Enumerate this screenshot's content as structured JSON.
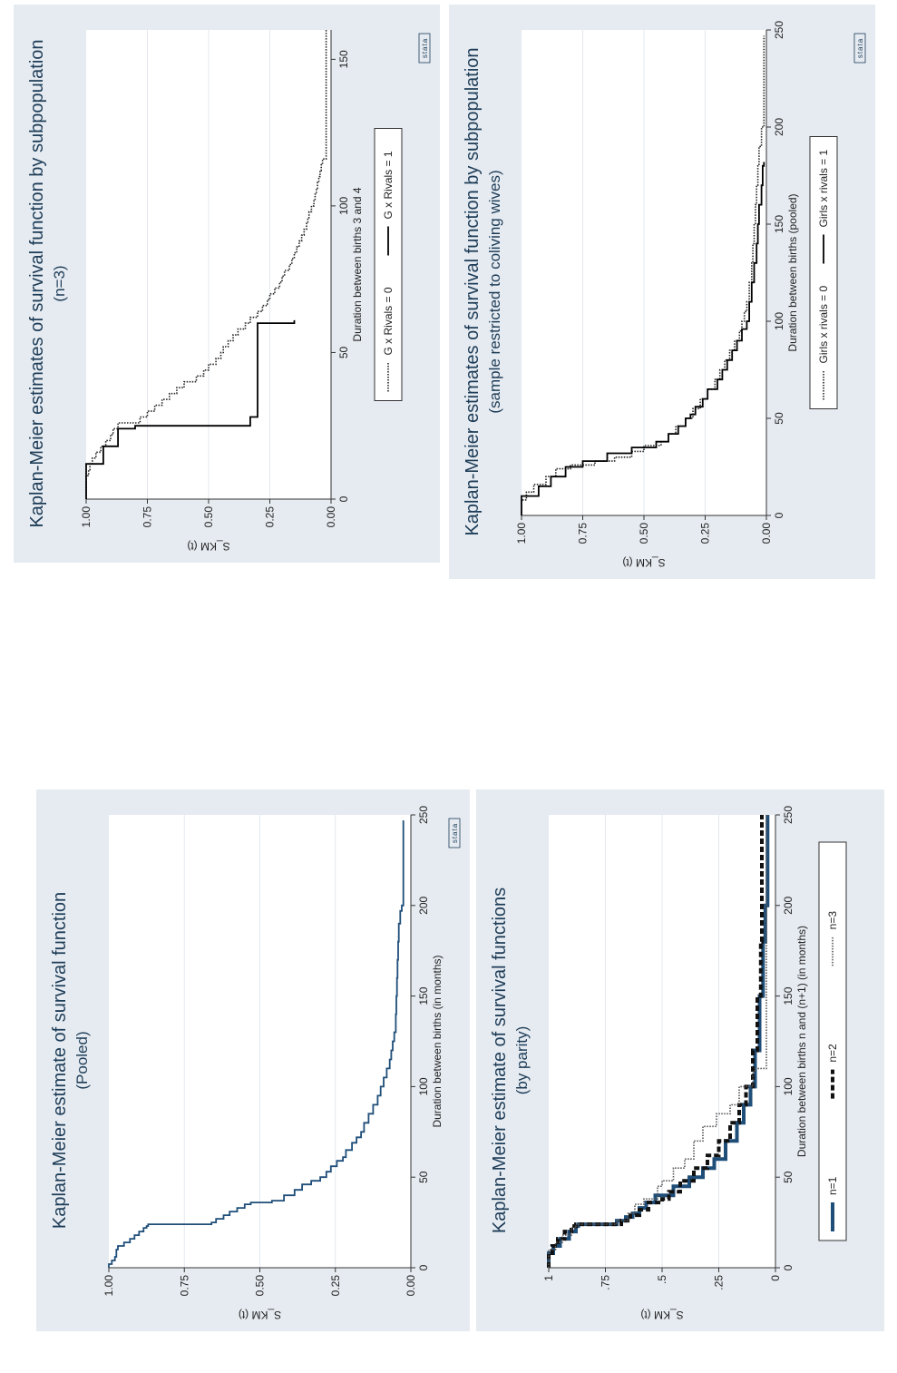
{
  "charts": [
    {
      "id": "pooled",
      "type": "line",
      "title": "Kaplan-Meier estimate of survival function",
      "subtitle": "(Pooled)",
      "xlabel": "Duration between births (in months)",
      "ylabel": "S_KM (t)",
      "xlim": [
        0,
        250
      ],
      "ylim": [
        0,
        1
      ],
      "xticks": [
        "0",
        "50",
        "100",
        "150",
        "200",
        "250"
      ],
      "yticks": [
        "0.00",
        "0.25",
        "0.50",
        "0.75",
        "1.00"
      ],
      "grid": true,
      "legend": null,
      "watermark": "stata",
      "series": [
        {
          "name": "",
          "color": "#1f4e79",
          "style": "solid",
          "x": [
            0,
            2,
            4,
            6,
            10,
            12,
            14,
            16,
            18,
            20,
            22,
            23,
            24,
            25,
            27,
            29,
            31,
            33,
            35,
            36,
            37,
            40,
            43,
            46,
            48,
            50,
            53,
            56,
            59,
            61,
            65,
            69,
            72,
            75,
            80,
            85,
            90,
            95,
            100,
            105,
            110,
            115,
            120,
            125,
            130,
            140,
            150,
            160,
            170,
            180,
            190,
            197,
            200,
            247
          ],
          "y": [
            1.0,
            0.99,
            0.98,
            0.975,
            0.97,
            0.95,
            0.93,
            0.915,
            0.9,
            0.885,
            0.875,
            0.87,
            0.66,
            0.645,
            0.62,
            0.6,
            0.575,
            0.55,
            0.53,
            0.46,
            0.42,
            0.385,
            0.36,
            0.33,
            0.3,
            0.28,
            0.265,
            0.245,
            0.225,
            0.215,
            0.195,
            0.18,
            0.165,
            0.155,
            0.14,
            0.125,
            0.11,
            0.1,
            0.09,
            0.08,
            0.07,
            0.065,
            0.06,
            0.055,
            0.05,
            0.048,
            0.046,
            0.044,
            0.042,
            0.04,
            0.035,
            0.03,
            0.025,
            0.025
          ]
        }
      ]
    },
    {
      "id": "parity",
      "type": "line",
      "title": "Kaplan-Meier estimate of survival functions",
      "subtitle": "(by parity)",
      "xlabel": "Duration between births n and (n+1) (in months)",
      "ylabel": "S_KM (t)",
      "xlim": [
        0,
        250
      ],
      "ylim": [
        0,
        1
      ],
      "xticks": [
        "0",
        "50",
        "100",
        "150",
        "200",
        "250"
      ],
      "yticks": [
        "0",
        ".25",
        ".5",
        ".75",
        "1"
      ],
      "grid": true,
      "legend": {
        "position": "bottom",
        "entries": [
          "n=1",
          "n=2",
          "n=3"
        ]
      },
      "watermark": "",
      "series": [
        {
          "name": "n=1",
          "color": "#1f4e79",
          "style": "thick",
          "x": [
            0,
            8,
            12,
            16,
            20,
            23,
            24,
            26,
            28,
            30,
            33,
            36,
            40,
            45,
            50,
            55,
            60,
            70,
            80,
            90,
            100,
            120,
            150,
            180,
            200,
            250
          ],
          "y": [
            1.0,
            0.98,
            0.95,
            0.91,
            0.88,
            0.87,
            0.7,
            0.66,
            0.63,
            0.6,
            0.57,
            0.53,
            0.45,
            0.38,
            0.32,
            0.27,
            0.22,
            0.17,
            0.14,
            0.11,
            0.09,
            0.07,
            0.055,
            0.045,
            0.035,
            0.035
          ]
        },
        {
          "name": "n=2",
          "color": "#111111",
          "style": "dash",
          "x": [
            0,
            8,
            12,
            16,
            20,
            23,
            24,
            26,
            29,
            32,
            36,
            38,
            42,
            48,
            55,
            62,
            70,
            80,
            90,
            100,
            120,
            150,
            180,
            200,
            250
          ],
          "y": [
            1.0,
            0.985,
            0.96,
            0.93,
            0.9,
            0.88,
            0.68,
            0.64,
            0.6,
            0.56,
            0.5,
            0.47,
            0.42,
            0.36,
            0.3,
            0.25,
            0.2,
            0.16,
            0.13,
            0.1,
            0.08,
            0.065,
            0.06,
            0.06,
            0.06
          ]
        },
        {
          "name": "n=3",
          "color": "#555555",
          "style": "dot",
          "x": [
            0,
            10,
            14,
            18,
            22,
            24,
            26,
            30,
            35,
            38,
            45,
            48,
            55,
            60,
            70,
            78,
            85,
            90,
            100,
            108,
            110,
            130,
            150,
            200,
            250
          ],
          "y": [
            1.0,
            0.97,
            0.94,
            0.9,
            0.88,
            0.7,
            0.65,
            0.62,
            0.58,
            0.52,
            0.5,
            0.45,
            0.4,
            0.36,
            0.32,
            0.26,
            0.2,
            0.16,
            0.1,
            0.09,
            0.04,
            0.04,
            0.04,
            0.04,
            0.04
          ]
        }
      ]
    },
    {
      "id": "rivals",
      "type": "line",
      "title": "Kaplan-Meier estimates of survival function by subpopulation",
      "subtitle": "(n=3)",
      "xlabel": "Duration between births 3 and 4",
      "ylabel": "S_KM (t)",
      "xlim": [
        0,
        160
      ],
      "ylim": [
        0,
        1
      ],
      "xticks": [
        "0",
        "50",
        "100",
        "150"
      ],
      "yticks": [
        "0.00",
        "0.25",
        "0.50",
        "0.75",
        "1.00"
      ],
      "grid": true,
      "legend": {
        "position": "bottom",
        "entries": [
          "G x Rivals = 0",
          "G x Rivals = 1"
        ]
      },
      "watermark": "stata",
      "series": [
        {
          "name": "G x Rivals = 0",
          "color": "#222222",
          "style": "dot",
          "x": [
            0,
            8,
            10,
            12,
            14,
            16,
            18,
            20,
            22,
            24,
            26,
            28,
            30,
            32,
            34,
            36,
            38,
            40,
            42,
            44,
            46,
            48,
            50,
            52,
            54,
            56,
            58,
            60,
            62,
            64,
            66,
            68,
            70,
            72,
            74,
            76,
            78,
            80,
            82,
            84,
            86,
            88,
            90,
            92,
            94,
            96,
            98,
            100,
            102,
            104,
            106,
            108,
            110,
            112,
            114,
            116,
            160
          ],
          "y": [
            1.0,
            0.99,
            0.985,
            0.975,
            0.96,
            0.94,
            0.92,
            0.9,
            0.89,
            0.87,
            0.78,
            0.75,
            0.72,
            0.69,
            0.66,
            0.63,
            0.6,
            0.55,
            0.52,
            0.5,
            0.47,
            0.45,
            0.44,
            0.42,
            0.4,
            0.38,
            0.35,
            0.33,
            0.3,
            0.28,
            0.26,
            0.25,
            0.23,
            0.21,
            0.2,
            0.19,
            0.17,
            0.16,
            0.15,
            0.14,
            0.13,
            0.12,
            0.11,
            0.1,
            0.095,
            0.09,
            0.08,
            0.07,
            0.065,
            0.06,
            0.055,
            0.05,
            0.045,
            0.04,
            0.035,
            0.02,
            0.02
          ]
        },
        {
          "name": "G x Rivals = 1",
          "color": "#000000",
          "style": "solid",
          "x": [
            0,
            12,
            12,
            18,
            18,
            24,
            24,
            25,
            25,
            28,
            28,
            60,
            60,
            61
          ],
          "y": [
            1.0,
            1.0,
            0.93,
            0.93,
            0.87,
            0.87,
            0.8,
            0.8,
            0.33,
            0.33,
            0.3,
            0.3,
            0.15,
            0.15
          ]
        }
      ]
    },
    {
      "id": "cowives",
      "type": "line",
      "title": "Kaplan-Meier estimates of survival function by subpopulation",
      "subtitle": "(sample restricted to coliving wives)",
      "xlabel": "Duration between births (pooled)",
      "ylabel": "S_KM (t)",
      "xlim": [
        0,
        250
      ],
      "ylim": [
        0,
        1
      ],
      "xticks": [
        "0",
        "50",
        "100",
        "150",
        "200",
        "250"
      ],
      "yticks": [
        "0.00",
        "0.25",
        "0.50",
        "0.75",
        "1.00"
      ],
      "grid": true,
      "legend": {
        "position": "bottom",
        "entries": [
          "Girls x rivals = 0",
          "Girls x rivals = 1"
        ]
      },
      "watermark": "stata",
      "series": [
        {
          "name": "Girls x rivals = 0",
          "color": "#222222",
          "style": "dot",
          "x": [
            0,
            8,
            12,
            16,
            20,
            24,
            26,
            28,
            30,
            33,
            36,
            38,
            42,
            46,
            50,
            55,
            60,
            65,
            70,
            75,
            80,
            85,
            90,
            95,
            100,
            105,
            110,
            120,
            130,
            140,
            150,
            160,
            170,
            180,
            190,
            200,
            247
          ],
          "y": [
            1.0,
            0.98,
            0.95,
            0.9,
            0.86,
            0.8,
            0.7,
            0.62,
            0.55,
            0.5,
            0.43,
            0.4,
            0.37,
            0.33,
            0.3,
            0.27,
            0.24,
            0.21,
            0.19,
            0.17,
            0.15,
            0.13,
            0.11,
            0.1,
            0.09,
            0.08,
            0.07,
            0.06,
            0.055,
            0.05,
            0.045,
            0.04,
            0.035,
            0.03,
            0.02,
            0.01,
            0.01
          ]
        },
        {
          "name": "Girls x rivals = 1",
          "color": "#000000",
          "style": "solid",
          "x": [
            0,
            10,
            10,
            15,
            20,
            25,
            28,
            32,
            35,
            38,
            42,
            46,
            50,
            52,
            56,
            60,
            65,
            70,
            75,
            80,
            85,
            90,
            96,
            100,
            110,
            120,
            130,
            140,
            150,
            160,
            170,
            180,
            182
          ],
          "y": [
            1.0,
            1.0,
            0.93,
            0.88,
            0.82,
            0.75,
            0.65,
            0.55,
            0.45,
            0.4,
            0.36,
            0.33,
            0.31,
            0.29,
            0.26,
            0.24,
            0.2,
            0.18,
            0.16,
            0.14,
            0.12,
            0.1,
            0.08,
            0.07,
            0.06,
            0.05,
            0.04,
            0.035,
            0.03,
            0.02,
            0.015,
            0.01,
            0.01
          ]
        }
      ]
    }
  ]
}
